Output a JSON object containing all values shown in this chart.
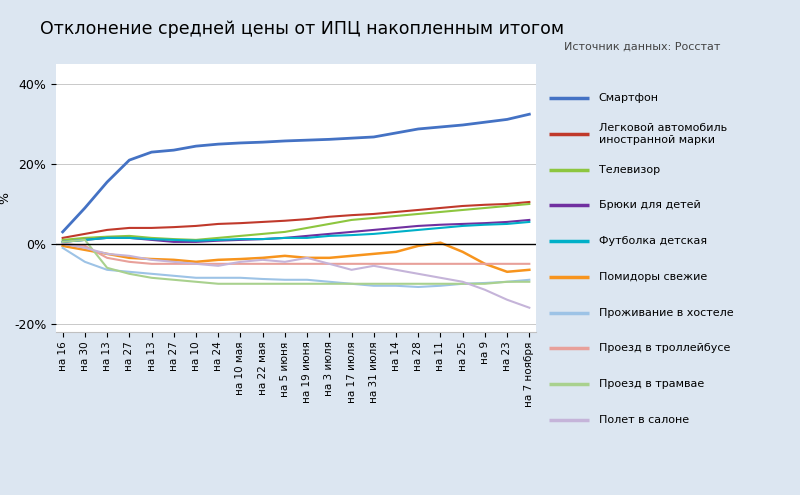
{
  "title": "Отклонение средней цены от ИПЦ накопленным итогом",
  "source_label": "Источник данных: Росстат",
  "ylabel": "%",
  "ylim": [
    -22,
    45
  ],
  "yticks": [
    -20,
    0,
    20,
    40
  ],
  "ytick_labels": [
    "-20%",
    "0%",
    "20%",
    "40%"
  ],
  "x_labels": [
    "на 16",
    "на 30",
    "на 13",
    "на 27",
    "на 13",
    "на 27",
    "на 10",
    "на 24",
    "на 10 мая",
    "на 22 мая",
    "на 5 июня",
    "на 19 июня",
    "на 3 июля",
    "на 17 июля",
    "на 31 июля",
    "на 14",
    "на 28",
    "на 11",
    "на 25",
    "на 9",
    "на 23",
    "на 7 ноября"
  ],
  "series": [
    {
      "name": "Смартфон",
      "color": "#4472C4",
      "linewidth": 2.0,
      "values": [
        3.0,
        9.0,
        15.5,
        21.0,
        23.0,
        23.5,
        24.5,
        25.0,
        25.3,
        25.5,
        25.8,
        26.0,
        26.2,
        26.5,
        26.8,
        27.8,
        28.8,
        29.3,
        29.8,
        30.5,
        31.2,
        32.5
      ]
    },
    {
      "name": "Легковой автомобиль\nиностранной марки",
      "color": "#C0392B",
      "linewidth": 1.5,
      "values": [
        1.5,
        2.5,
        3.5,
        4.0,
        4.0,
        4.2,
        4.5,
        5.0,
        5.2,
        5.5,
        5.8,
        6.2,
        6.8,
        7.2,
        7.5,
        8.0,
        8.5,
        9.0,
        9.5,
        9.8,
        10.0,
        10.5
      ]
    },
    {
      "name": "Телевизор",
      "color": "#8DC63F",
      "linewidth": 1.5,
      "values": [
        1.0,
        1.5,
        1.8,
        2.0,
        1.5,
        1.2,
        1.0,
        1.5,
        2.0,
        2.5,
        3.0,
        4.0,
        5.0,
        6.0,
        6.5,
        7.0,
        7.5,
        8.0,
        8.5,
        9.0,
        9.5,
        10.0
      ]
    },
    {
      "name": "Брюки для детей",
      "color": "#7030A0",
      "linewidth": 1.5,
      "values": [
        0.5,
        1.0,
        1.5,
        1.5,
        1.0,
        0.5,
        0.5,
        0.8,
        1.0,
        1.2,
        1.5,
        2.0,
        2.5,
        3.0,
        3.5,
        4.0,
        4.5,
        4.8,
        5.0,
        5.2,
        5.5,
        6.0
      ]
    },
    {
      "name": "Футболка детская",
      "color": "#00B0C8",
      "linewidth": 1.5,
      "values": [
        0.5,
        1.0,
        1.5,
        1.5,
        1.2,
        1.0,
        0.8,
        1.0,
        1.2,
        1.2,
        1.5,
        1.5,
        2.0,
        2.2,
        2.5,
        3.0,
        3.5,
        4.0,
        4.5,
        4.8,
        5.0,
        5.5
      ]
    },
    {
      "name": "Помидоры свежие",
      "color": "#F7941D",
      "linewidth": 1.8,
      "values": [
        -0.5,
        -1.5,
        -2.5,
        -3.5,
        -3.8,
        -4.0,
        -4.5,
        -4.0,
        -3.8,
        -3.5,
        -3.0,
        -3.5,
        -3.5,
        -3.0,
        -2.5,
        -2.0,
        -0.5,
        0.3,
        -2.0,
        -5.0,
        -7.0,
        -6.5
      ]
    },
    {
      "name": "Проживание в хостеле",
      "color": "#9DC3E6",
      "linewidth": 1.5,
      "values": [
        -1.0,
        -4.5,
        -6.5,
        -7.0,
        -7.5,
        -8.0,
        -8.5,
        -8.5,
        -8.5,
        -8.8,
        -9.0,
        -9.0,
        -9.5,
        -10.0,
        -10.5,
        -10.5,
        -10.8,
        -10.5,
        -10.0,
        -9.8,
        -9.5,
        -9.0
      ]
    },
    {
      "name": "Проезд в троллейбусе",
      "color": "#E8A09A",
      "linewidth": 1.5,
      "values": [
        0.0,
        -0.5,
        -3.5,
        -4.5,
        -5.0,
        -5.0,
        -5.0,
        -5.0,
        -5.0,
        -5.0,
        -5.0,
        -5.0,
        -5.0,
        -5.0,
        -5.0,
        -5.0,
        -5.0,
        -5.0,
        -5.0,
        -5.0,
        -5.0,
        -5.0
      ]
    },
    {
      "name": "Проезд в трамвае",
      "color": "#A9D18E",
      "linewidth": 1.5,
      "values": [
        0.5,
        1.0,
        -6.0,
        -7.5,
        -8.5,
        -9.0,
        -9.5,
        -10.0,
        -10.0,
        -10.0,
        -10.0,
        -10.0,
        -10.0,
        -10.0,
        -10.0,
        -10.0,
        -10.0,
        -10.0,
        -10.0,
        -10.0,
        -9.5,
        -9.5
      ]
    },
    {
      "name": "Полет в салоне",
      "color": "#C5B4D9",
      "linewidth": 1.5,
      "values": [
        0.0,
        -1.0,
        -2.5,
        -3.0,
        -4.0,
        -4.5,
        -5.0,
        -5.5,
        -4.5,
        -4.0,
        -4.5,
        -3.5,
        -5.0,
        -6.5,
        -5.5,
        -6.5,
        -7.5,
        -8.5,
        -9.5,
        -11.5,
        -14.0,
        -16.0
      ]
    }
  ],
  "bg_color": "#DCE6F1",
  "plot_bg_color": "#FFFFFF",
  "fig_bg_color": "#DCE6F1"
}
